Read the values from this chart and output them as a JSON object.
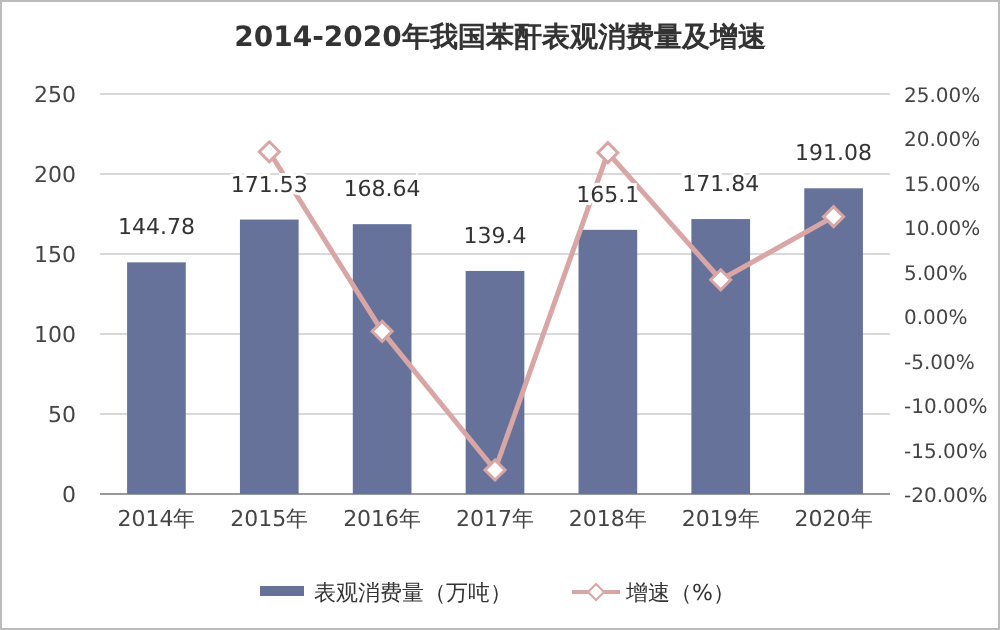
{
  "chart_data": {
    "type": "bar",
    "title": "2014-2020年我国苯酐表观消费量及增速",
    "categories": [
      "2014年",
      "2015年",
      "2016年",
      "2017年",
      "2018年",
      "2019年",
      "2020年"
    ],
    "series": [
      {
        "name": "表观消费量（万吨）",
        "color": "#67729b",
        "values": [
          144.78,
          171.53,
          168.64,
          139.4,
          165.1,
          171.84,
          191.08
        ],
        "value_labels": [
          "144.78",
          "171.53",
          "168.64",
          "139.4",
          "165.1",
          "171.84",
          "191.08"
        ]
      },
      {
        "name": "增速（%）",
        "type": "line",
        "axis": "y2",
        "color": "#d9a6a6",
        "marker": "diamond",
        "values": [
          null,
          18.5,
          -1.7,
          -17.3,
          18.4,
          4.1,
          11.2
        ]
      }
    ],
    "ylim": [
      0,
      250
    ],
    "yticks": [
      0,
      50,
      100,
      150,
      200,
      250
    ],
    "y2lim": [
      -20,
      25
    ],
    "y2ticks": [
      {
        "value": -20,
        "label": "-20.00%"
      },
      {
        "value": -15,
        "label": "-15.00%"
      },
      {
        "value": -10,
        "label": "-10.00%"
      },
      {
        "value": -5,
        "label": "-5.00%"
      },
      {
        "value": 0,
        "label": "0.00%"
      },
      {
        "value": 5,
        "label": "5.00%"
      },
      {
        "value": 10,
        "label": "10.00%"
      },
      {
        "value": 15,
        "label": "15.00%"
      },
      {
        "value": 20,
        "label": "20.00%"
      },
      {
        "value": 25,
        "label": "25.00%"
      }
    ],
    "grid": "y",
    "legend": "bottom"
  }
}
